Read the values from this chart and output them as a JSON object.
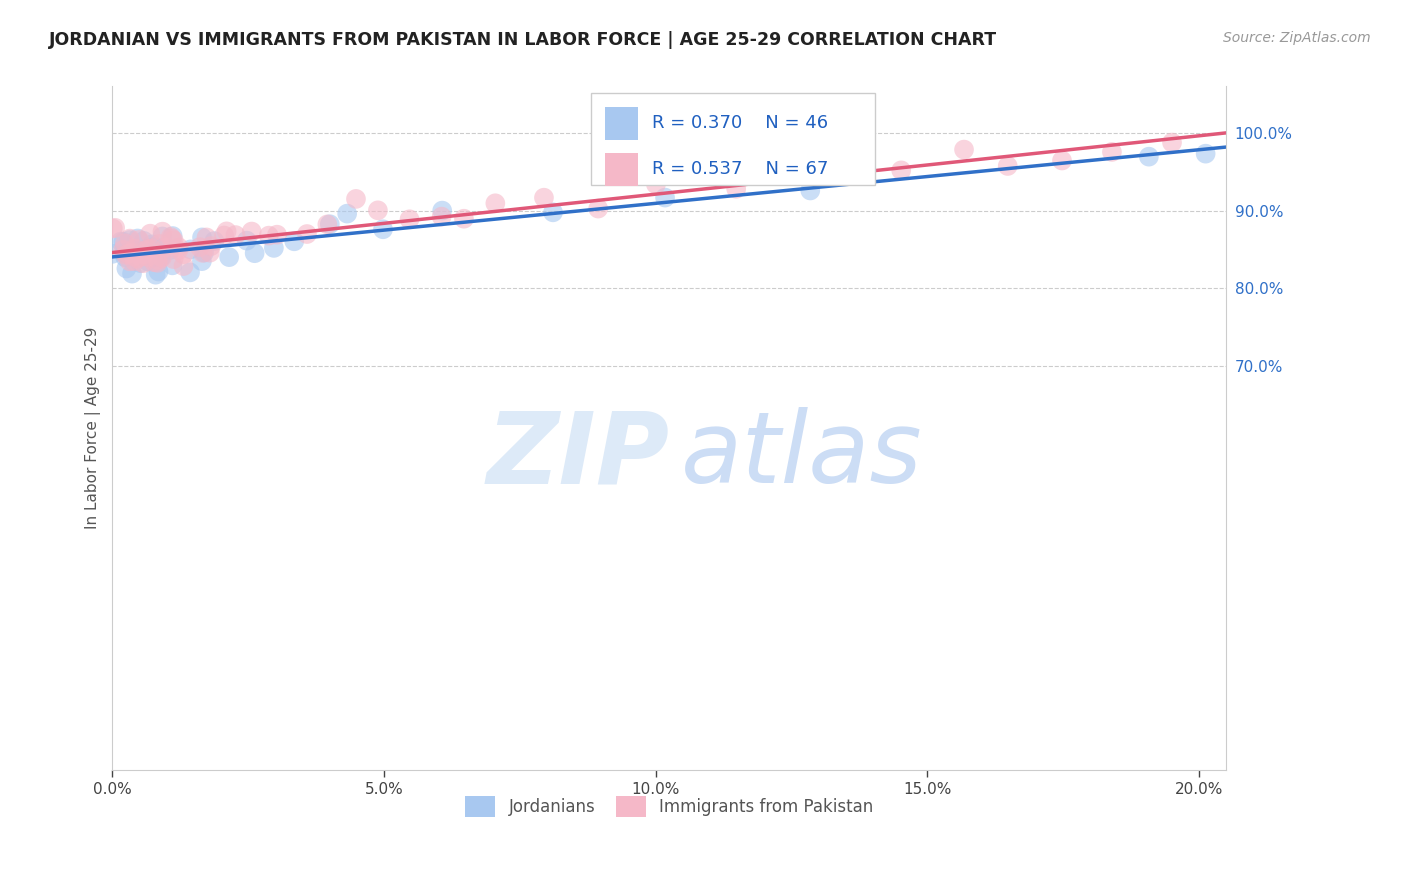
{
  "title": "JORDANIAN VS IMMIGRANTS FROM PAKISTAN IN LABOR FORCE | AGE 25-29 CORRELATION CHART",
  "source": "Source: ZipAtlas.com",
  "ylabel_label": "In Labor Force | Age 25-29",
  "legend_blue_label": "Jordanians",
  "legend_pink_label": "Immigrants from Pakistan",
  "blue_R": 0.37,
  "blue_N": 46,
  "pink_R": 0.537,
  "pink_N": 67,
  "blue_color": "#a8c8f0",
  "pink_color": "#f5b8c8",
  "blue_line_color": "#3070c8",
  "pink_line_color": "#e05878",
  "xlim": [
    0.0,
    0.205
  ],
  "ylim": [
    0.18,
    1.06
  ],
  "xticks": [
    0.0,
    0.05,
    0.1,
    0.15,
    0.2
  ],
  "xticklabels": [
    "0.0%",
    "5.0%",
    "10.0%",
    "15.0%",
    "20.0%"
  ],
  "yticks": [
    0.7,
    0.8,
    0.9,
    1.0
  ],
  "yticklabels": [
    "70.0%",
    "80.0%",
    "90.0%",
    "100.0%"
  ],
  "blue_scatter_x": [
    0.001,
    0.001,
    0.002,
    0.002,
    0.003,
    0.003,
    0.003,
    0.004,
    0.004,
    0.004,
    0.005,
    0.005,
    0.005,
    0.006,
    0.006,
    0.007,
    0.007,
    0.008,
    0.008,
    0.009,
    0.009,
    0.01,
    0.01,
    0.011,
    0.012,
    0.013,
    0.014,
    0.015,
    0.016,
    0.017,
    0.018,
    0.02,
    0.022,
    0.025,
    0.027,
    0.03,
    0.035,
    0.04,
    0.045,
    0.05,
    0.06,
    0.08,
    0.1,
    0.13,
    0.19,
    0.2
  ],
  "blue_scatter_y": [
    0.84,
    0.85,
    0.845,
    0.855,
    0.835,
    0.84,
    0.848,
    0.84,
    0.85,
    0.857,
    0.84,
    0.847,
    0.855,
    0.838,
    0.845,
    0.835,
    0.85,
    0.842,
    0.85,
    0.84,
    0.847,
    0.838,
    0.845,
    0.843,
    0.85,
    0.847,
    0.855,
    0.848,
    0.853,
    0.84,
    0.855,
    0.848,
    0.86,
    0.855,
    0.87,
    0.86,
    0.875,
    0.865,
    0.875,
    0.88,
    0.89,
    0.9,
    0.91,
    0.935,
    0.99,
    0.995
  ],
  "pink_scatter_x": [
    0.001,
    0.001,
    0.002,
    0.002,
    0.002,
    0.003,
    0.003,
    0.003,
    0.004,
    0.004,
    0.004,
    0.004,
    0.005,
    0.005,
    0.005,
    0.005,
    0.006,
    0.006,
    0.006,
    0.007,
    0.007,
    0.007,
    0.008,
    0.008,
    0.008,
    0.009,
    0.009,
    0.01,
    0.01,
    0.01,
    0.011,
    0.011,
    0.012,
    0.012,
    0.013,
    0.013,
    0.014,
    0.015,
    0.016,
    0.017,
    0.018,
    0.019,
    0.02,
    0.022,
    0.024,
    0.026,
    0.028,
    0.03,
    0.035,
    0.04,
    0.045,
    0.05,
    0.055,
    0.06,
    0.065,
    0.07,
    0.08,
    0.09,
    0.1,
    0.115,
    0.13,
    0.145,
    0.155,
    0.165,
    0.175,
    0.185,
    0.195
  ],
  "pink_scatter_y": [
    0.845,
    0.85,
    0.84,
    0.848,
    0.855,
    0.843,
    0.85,
    0.855,
    0.84,
    0.848,
    0.852,
    0.858,
    0.842,
    0.848,
    0.853,
    0.858,
    0.845,
    0.85,
    0.855,
    0.843,
    0.848,
    0.853,
    0.84,
    0.847,
    0.855,
    0.843,
    0.85,
    0.84,
    0.848,
    0.855,
    0.845,
    0.853,
    0.84,
    0.85,
    0.845,
    0.853,
    0.848,
    0.855,
    0.848,
    0.853,
    0.858,
    0.85,
    0.855,
    0.86,
    0.862,
    0.865,
    0.868,
    0.87,
    0.878,
    0.883,
    0.888,
    0.89,
    0.893,
    0.898,
    0.9,
    0.905,
    0.912,
    0.92,
    0.928,
    0.935,
    0.943,
    0.95,
    0.958,
    0.963,
    0.968,
    0.972,
    0.975
  ]
}
